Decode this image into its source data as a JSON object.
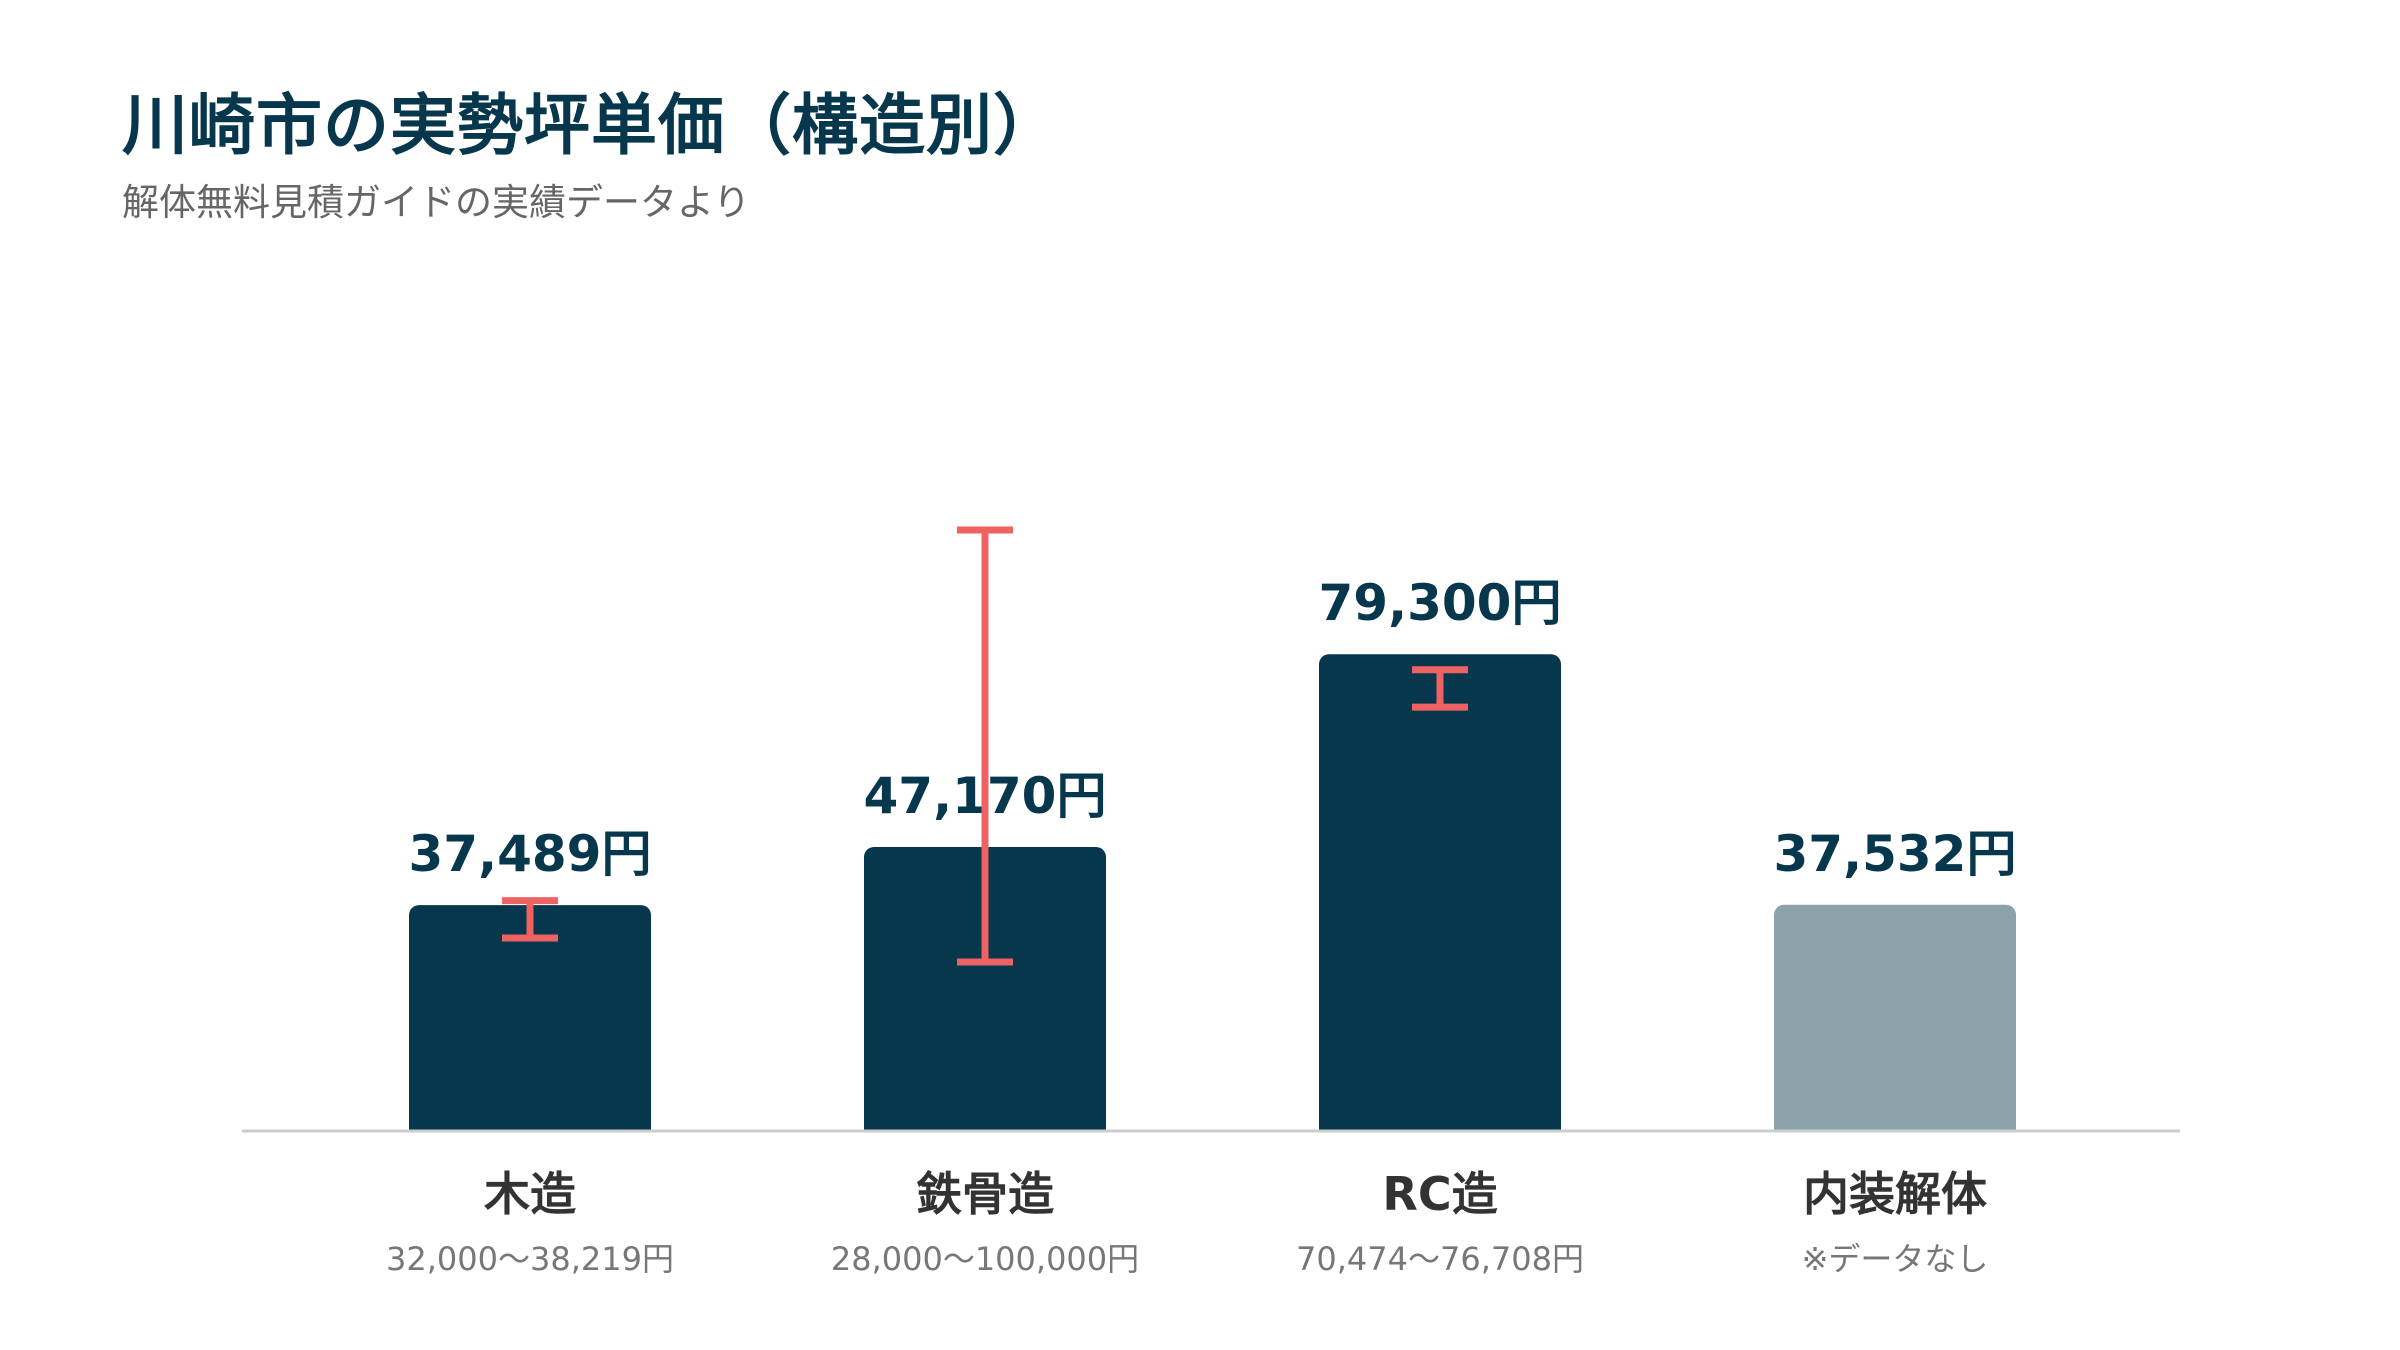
{
  "header": {
    "title": "川崎市の実勢坪単価（構造別）",
    "subtitle": "解体無料見積ガイドの実績データより"
  },
  "colors": {
    "bar": "#06374c",
    "bar_no_data": "#8aa3ab",
    "error_bar": "#ef6262",
    "axis": "#cccccc",
    "value_label": "#06374c",
    "category_label": "#333333",
    "range_label": "#777777"
  },
  "chart_data": {
    "type": "bar",
    "categories": [
      "木造",
      "鉄骨造",
      "RC造",
      "内装解体"
    ],
    "values": [
      37489,
      47170,
      79300,
      37532
    ],
    "value_labels": [
      "37,489円",
      "47,170円",
      "79,300円",
      "37,532円"
    ],
    "ranges": [
      [
        32000,
        38219
      ],
      [
        28000,
        100000
      ],
      [
        70474,
        76708
      ],
      null
    ],
    "range_labels": [
      "32,000〜38,219円",
      "28,000〜100,000円",
      "70,474〜76,708円",
      "※データなし"
    ],
    "no_data": [
      false,
      false,
      false,
      true
    ],
    "ylim": [
      0,
      100000
    ],
    "grid": false
  }
}
